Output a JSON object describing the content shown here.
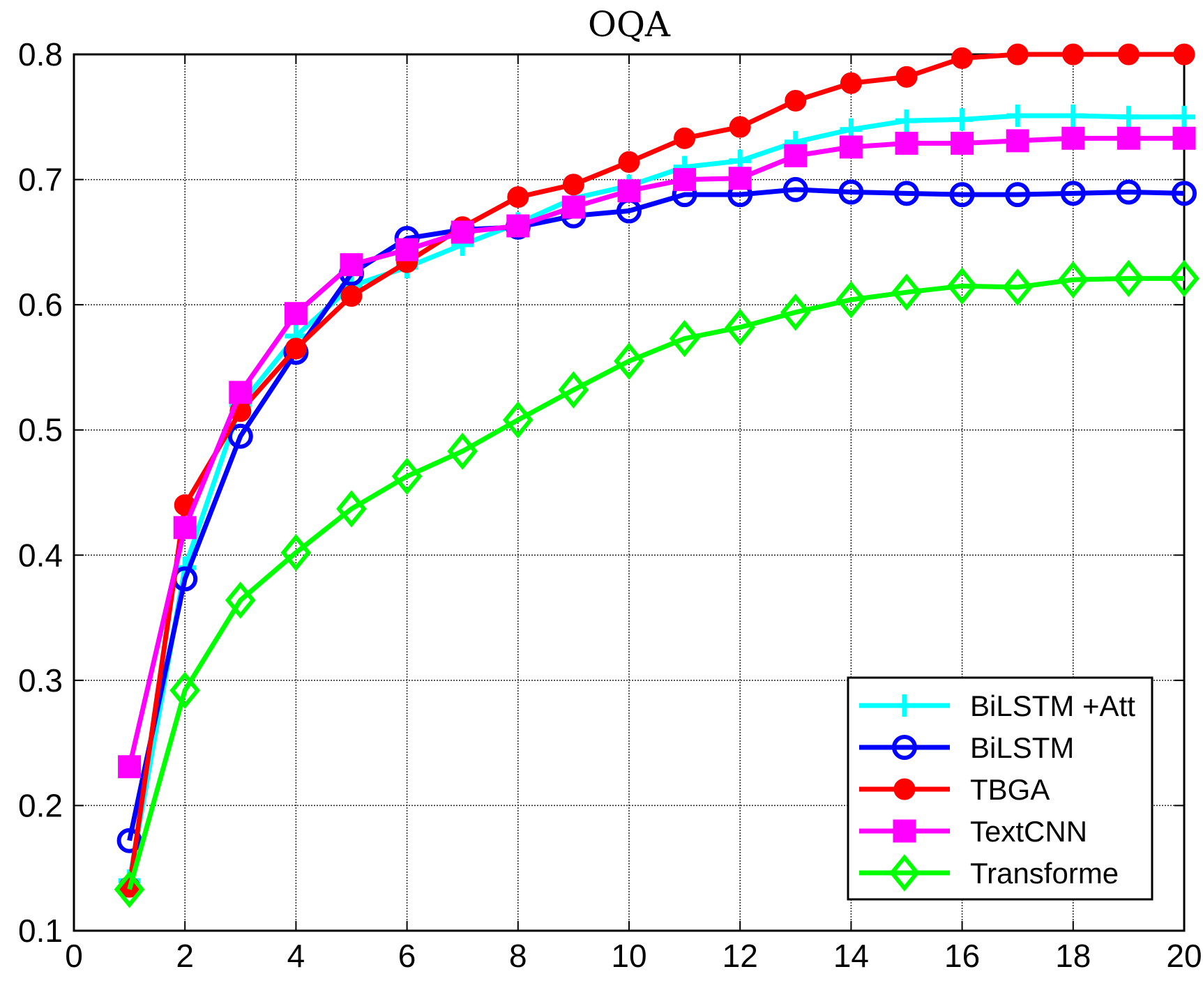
{
  "chart_data": {
    "type": "line",
    "title": "OQA",
    "xlabel": "",
    "ylabel": "",
    "xlim": [
      0,
      20
    ],
    "ylim": [
      0.1,
      0.8
    ],
    "xticks": [
      0,
      2,
      4,
      6,
      8,
      10,
      12,
      14,
      16,
      18,
      20
    ],
    "yticks": [
      0.1,
      0.2,
      0.3,
      0.4,
      0.5,
      0.6,
      0.7,
      0.8
    ],
    "xtick_labels": [
      "0",
      "2",
      "4",
      "6",
      "8",
      "10",
      "12",
      "14",
      "16",
      "18",
      "20"
    ],
    "ytick_labels": [
      "0.1",
      "0.2",
      "0.3",
      "0.4",
      "0.5",
      "0.6",
      "0.7",
      "0.8"
    ],
    "grid": true,
    "legend_position": "bottom-right",
    "x": [
      1,
      2,
      3,
      4,
      5,
      6,
      7,
      8,
      9,
      10,
      11,
      12,
      13,
      14,
      15,
      16,
      17,
      18,
      19,
      20
    ],
    "series": [
      {
        "name": "BiLSTM +Att",
        "color": "#00ffff",
        "marker": "plus",
        "values": [
          0.14,
          0.39,
          0.52,
          0.575,
          0.615,
          0.63,
          0.648,
          0.665,
          0.685,
          0.695,
          0.71,
          0.715,
          0.73,
          0.74,
          0.747,
          0.748,
          0.751,
          0.751,
          0.75,
          0.75
        ]
      },
      {
        "name": "BiLSTM",
        "color": "#0000ff",
        "marker": "circle",
        "values": [
          0.172,
          0.381,
          0.495,
          0.562,
          0.625,
          0.653,
          0.66,
          0.662,
          0.671,
          0.675,
          0.688,
          0.688,
          0.692,
          0.69,
          0.689,
          0.688,
          0.688,
          0.689,
          0.69,
          0.689
        ]
      },
      {
        "name": "TBGA",
        "color": "#ff0000",
        "marker": "filled-circle",
        "values": [
          0.135,
          0.44,
          0.515,
          0.565,
          0.607,
          0.634,
          0.662,
          0.686,
          0.696,
          0.714,
          0.733,
          0.742,
          0.763,
          0.777,
          0.782,
          0.797,
          0.8,
          0.8,
          0.8,
          0.8
        ]
      },
      {
        "name": "TextCNN",
        "color": "#ff00ff",
        "marker": "square",
        "values": [
          0.231,
          0.422,
          0.53,
          0.593,
          0.632,
          0.644,
          0.658,
          0.663,
          0.678,
          0.691,
          0.7,
          0.701,
          0.719,
          0.726,
          0.729,
          0.729,
          0.731,
          0.733,
          0.733,
          0.733
        ]
      },
      {
        "name": "Transforme",
        "color": "#00ff00",
        "marker": "diamond",
        "values": [
          0.133,
          0.292,
          0.364,
          0.402,
          0.437,
          0.463,
          0.483,
          0.508,
          0.532,
          0.555,
          0.573,
          0.582,
          0.594,
          0.604,
          0.61,
          0.615,
          0.614,
          0.62,
          0.621,
          0.621
        ]
      }
    ]
  }
}
